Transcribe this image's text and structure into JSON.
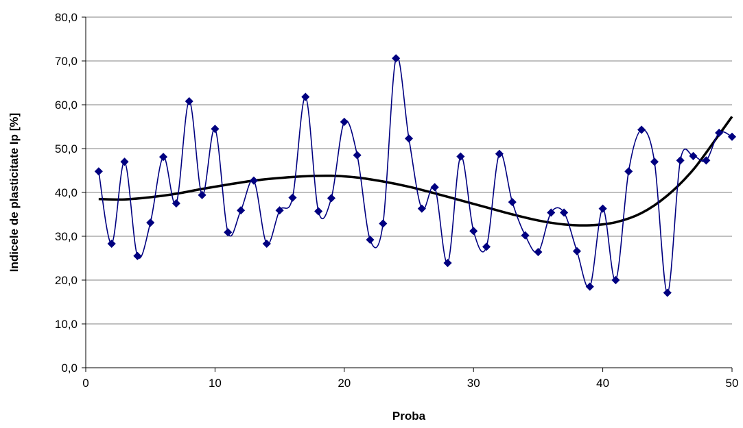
{
  "chart_data": {
    "type": "scatter",
    "title": "",
    "xlabel": "Proba",
    "ylabel": "Indicele de plasticitate Ip [%]",
    "xlim": [
      0,
      50
    ],
    "ylim": [
      0,
      80
    ],
    "x_ticks": [
      0,
      10,
      20,
      30,
      40,
      50
    ],
    "x_tick_labels": [
      "0",
      "10",
      "20",
      "30",
      "40",
      "50"
    ],
    "y_ticks": [
      0,
      10,
      20,
      30,
      40,
      50,
      60,
      70,
      80
    ],
    "y_tick_labels": [
      "0,0",
      "10,0",
      "20,0",
      "30,0",
      "40,0",
      "50,0",
      "60,0",
      "70,0",
      "80,0"
    ],
    "grid": "horizontal",
    "legend": "none",
    "series": [
      {
        "style": "smoothed-line-with-diamond-markers",
        "color": "#000080",
        "x": [
          1,
          2,
          3,
          4,
          5,
          6,
          7,
          8,
          9,
          10,
          11,
          12,
          13,
          14,
          15,
          16,
          17,
          18,
          19,
          20,
          21,
          22,
          23,
          24,
          25,
          26,
          27,
          28,
          29,
          30,
          31,
          32,
          33,
          34,
          35,
          36,
          37,
          38,
          39,
          40,
          41,
          42,
          43,
          44,
          45,
          46,
          47,
          48,
          49,
          50
        ],
        "values": [
          44.8,
          28.3,
          47.0,
          25.5,
          33.1,
          48.1,
          37.5,
          60.8,
          39.4,
          54.5,
          30.9,
          35.9,
          42.7,
          28.3,
          35.9,
          38.8,
          61.8,
          35.7,
          38.7,
          56.1,
          48.5,
          29.2,
          32.9,
          70.6,
          52.3,
          36.3,
          41.2,
          23.9,
          48.2,
          31.2,
          27.6,
          48.8,
          37.8,
          30.2,
          26.4,
          35.4,
          35.4,
          26.6,
          18.5,
          36.3,
          20.0,
          44.8,
          54.3,
          47.0,
          17.1,
          47.3,
          48.3,
          47.3,
          53.6,
          52.7
        ]
      },
      {
        "style": "trendline",
        "color": "#000000",
        "x": [
          1,
          3,
          5,
          7,
          9,
          11,
          13,
          15,
          17,
          19,
          21,
          23,
          25,
          27,
          29,
          31,
          33,
          35,
          37,
          39,
          41,
          43,
          45,
          47,
          49,
          50
        ],
        "values": [
          38.5,
          38.4,
          38.9,
          39.7,
          40.8,
          41.8,
          42.7,
          43.3,
          43.7,
          43.8,
          43.4,
          42.5,
          41.3,
          39.8,
          38.2,
          36.6,
          35.0,
          33.6,
          32.7,
          32.5,
          33.2,
          35.3,
          39.3,
          45.2,
          53.2,
          57.3
        ]
      }
    ]
  }
}
